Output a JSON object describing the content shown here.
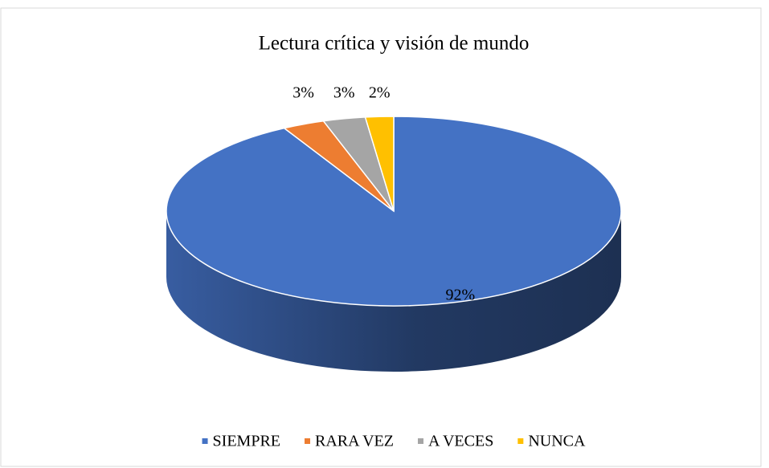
{
  "chart_data": {
    "type": "pie",
    "title": "Lectura crítica y visión de mundo",
    "categories": [
      "SIEMPRE",
      "RARA VEZ",
      "A VECES",
      "NUNCA"
    ],
    "values": [
      92,
      3,
      3,
      2
    ],
    "value_labels": [
      "92%",
      "3%",
      "3%",
      "2%"
    ],
    "colors": [
      "#4472c4",
      "#ed7d31",
      "#a5a5a5",
      "#ffc000"
    ],
    "legend": "bottom"
  }
}
